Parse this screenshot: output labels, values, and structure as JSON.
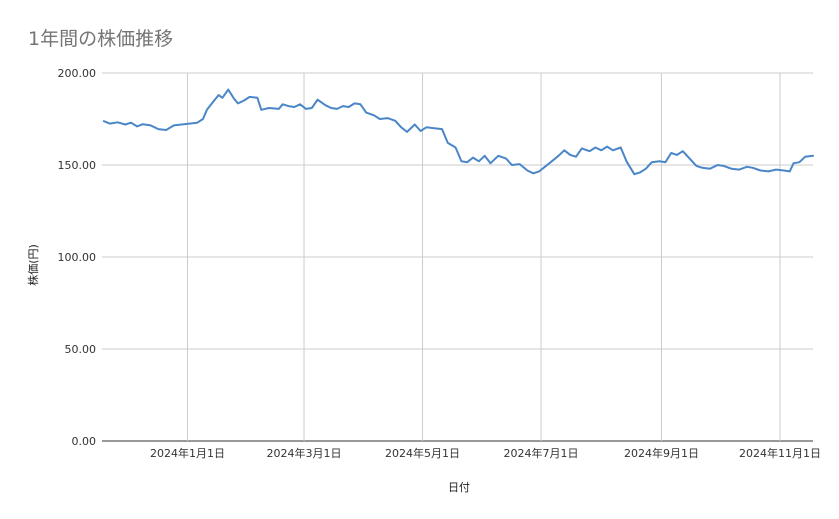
{
  "chart_data": {
    "type": "line",
    "title": "1年間の株価推移",
    "xlabel": "日付",
    "ylabel": "株価(円)",
    "ylim": [
      0,
      200
    ],
    "xlim": [
      "2023-11-18",
      "2024-11-18"
    ],
    "grid": true,
    "legend": "none",
    "line_color": "#4a86c8",
    "x_ticks": [
      {
        "date": "2024-01-01",
        "label": "2024年1月1日"
      },
      {
        "date": "2024-03-01",
        "label": "2024年3月1日"
      },
      {
        "date": "2024-05-01",
        "label": "2024年5月1日"
      },
      {
        "date": "2024-07-01",
        "label": "2024年7月1日"
      },
      {
        "date": "2024-09-01",
        "label": "2024年9月1日"
      },
      {
        "date": "2024-11-01",
        "label": "2024年11月1日"
      }
    ],
    "y_ticks": [
      {
        "value": 0,
        "label": "0.00"
      },
      {
        "value": 50,
        "label": "50.00"
      },
      {
        "value": 100,
        "label": "100.00"
      },
      {
        "value": 150,
        "label": "150.00"
      },
      {
        "value": 200,
        "label": "200.00"
      }
    ],
    "series": [
      {
        "points": [
          [
            "2023-11-19",
            173.8
          ],
          [
            "2023-11-22",
            172.5
          ],
          [
            "2023-11-26",
            173.2
          ],
          [
            "2023-11-30",
            172.0
          ],
          [
            "2023-12-03",
            173.0
          ],
          [
            "2023-12-06",
            171.0
          ],
          [
            "2023-12-09",
            172.2
          ],
          [
            "2023-12-13",
            171.5
          ],
          [
            "2023-12-17",
            169.5
          ],
          [
            "2023-12-21",
            169.0
          ],
          [
            "2023-12-25",
            171.5
          ],
          [
            "2023-12-29",
            172.0
          ],
          [
            "2024-01-02",
            172.5
          ],
          [
            "2024-01-06",
            173.0
          ],
          [
            "2024-01-09",
            175.0
          ],
          [
            "2024-01-11",
            180.0
          ],
          [
            "2024-01-14",
            184.0
          ],
          [
            "2024-01-17",
            188.0
          ],
          [
            "2024-01-19",
            186.5
          ],
          [
            "2024-01-22",
            191.0
          ],
          [
            "2024-01-25",
            186.0
          ],
          [
            "2024-01-27",
            183.5
          ],
          [
            "2024-01-30",
            185.0
          ],
          [
            "2024-02-02",
            187.0
          ],
          [
            "2024-02-06",
            186.5
          ],
          [
            "2024-02-08",
            180.0
          ],
          [
            "2024-02-12",
            181.0
          ],
          [
            "2024-02-17",
            180.5
          ],
          [
            "2024-02-19",
            183.0
          ],
          [
            "2024-02-22",
            182.0
          ],
          [
            "2024-02-25",
            181.5
          ],
          [
            "2024-02-28",
            183.0
          ],
          [
            "2024-03-02",
            180.5
          ],
          [
            "2024-03-05",
            181.0
          ],
          [
            "2024-03-08",
            185.5
          ],
          [
            "2024-03-12",
            182.5
          ],
          [
            "2024-03-15",
            181.0
          ],
          [
            "2024-03-18",
            180.5
          ],
          [
            "2024-03-21",
            182.0
          ],
          [
            "2024-03-24",
            181.5
          ],
          [
            "2024-03-27",
            183.5
          ],
          [
            "2024-03-30",
            183.0
          ],
          [
            "2024-04-02",
            178.5
          ],
          [
            "2024-04-06",
            177.0
          ],
          [
            "2024-04-09",
            175.0
          ],
          [
            "2024-04-13",
            175.5
          ],
          [
            "2024-04-17",
            174.0
          ],
          [
            "2024-04-20",
            170.5
          ],
          [
            "2024-04-23",
            168.0
          ],
          [
            "2024-04-27",
            172.0
          ],
          [
            "2024-04-30",
            168.5
          ],
          [
            "2024-05-03",
            170.5
          ],
          [
            "2024-05-07",
            170.0
          ],
          [
            "2024-05-11",
            169.5
          ],
          [
            "2024-05-14",
            162.0
          ],
          [
            "2024-05-18",
            159.5
          ],
          [
            "2024-05-21",
            152.0
          ],
          [
            "2024-05-24",
            151.5
          ],
          [
            "2024-05-27",
            154.0
          ],
          [
            "2024-05-30",
            152.0
          ],
          [
            "2024-06-02",
            155.0
          ],
          [
            "2024-06-05",
            151.0
          ],
          [
            "2024-06-09",
            155.0
          ],
          [
            "2024-06-13",
            153.5
          ],
          [
            "2024-06-16",
            150.0
          ],
          [
            "2024-06-20",
            150.5
          ],
          [
            "2024-06-24",
            147.0
          ],
          [
            "2024-06-27",
            145.5
          ],
          [
            "2024-06-30",
            146.5
          ],
          [
            "2024-07-03",
            149.0
          ],
          [
            "2024-07-06",
            151.5
          ],
          [
            "2024-07-10",
            155.0
          ],
          [
            "2024-07-13",
            158.0
          ],
          [
            "2024-07-16",
            155.5
          ],
          [
            "2024-07-19",
            154.5
          ],
          [
            "2024-07-22",
            159.0
          ],
          [
            "2024-07-26",
            157.5
          ],
          [
            "2024-07-29",
            159.5
          ],
          [
            "2024-08-01",
            158.0
          ],
          [
            "2024-08-04",
            160.0
          ],
          [
            "2024-08-07",
            158.0
          ],
          [
            "2024-08-11",
            159.5
          ],
          [
            "2024-08-14",
            152.0
          ],
          [
            "2024-08-18",
            145.0
          ],
          [
            "2024-08-21",
            146.0
          ],
          [
            "2024-08-24",
            148.0
          ],
          [
            "2024-08-27",
            151.5
          ],
          [
            "2024-08-31",
            152.0
          ],
          [
            "2024-09-03",
            151.5
          ],
          [
            "2024-09-06",
            156.5
          ],
          [
            "2024-09-09",
            155.5
          ],
          [
            "2024-09-12",
            157.5
          ],
          [
            "2024-09-15",
            154.0
          ],
          [
            "2024-09-19",
            149.5
          ],
          [
            "2024-09-22",
            148.5
          ],
          [
            "2024-09-26",
            148.0
          ],
          [
            "2024-09-30",
            150.0
          ],
          [
            "2024-10-03",
            149.5
          ],
          [
            "2024-10-07",
            148.0
          ],
          [
            "2024-10-11",
            147.5
          ],
          [
            "2024-10-15",
            149.0
          ],
          [
            "2024-10-18",
            148.5
          ],
          [
            "2024-10-22",
            147.0
          ],
          [
            "2024-10-26",
            146.5
          ],
          [
            "2024-10-30",
            147.5
          ],
          [
            "2024-11-03",
            147.0
          ],
          [
            "2024-11-06",
            146.5
          ],
          [
            "2024-11-08",
            151.0
          ],
          [
            "2024-11-11",
            151.5
          ],
          [
            "2024-11-14",
            154.5
          ],
          [
            "2024-11-18",
            155.0
          ]
        ]
      }
    ]
  }
}
